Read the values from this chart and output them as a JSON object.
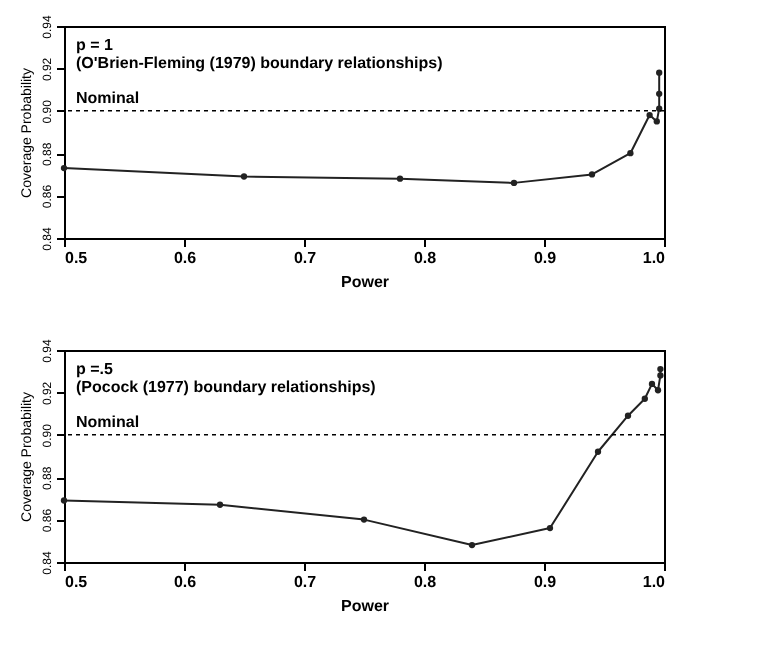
{
  "chart_data": [
    {
      "type": "line",
      "xlabel": "Power",
      "ylabel": "Coverage Probability",
      "annotations": [
        "p = 1",
        "(O'Brien-Fleming (1979) boundary relationships)"
      ],
      "x": [
        0.5,
        0.65,
        0.78,
        0.875,
        0.94,
        0.972,
        0.988,
        0.994,
        0.996,
        0.996,
        0.996
      ],
      "values": [
        0.873,
        0.869,
        0.868,
        0.866,
        0.87,
        0.88,
        0.898,
        0.895,
        0.901,
        0.908,
        0.918
      ],
      "color": "#222222",
      "marker": "circle",
      "grid": false,
      "xlim": [
        0.5,
        1.0
      ],
      "xticks": [
        0.5,
        0.6,
        0.7,
        0.8,
        0.9,
        {
          "value": 1.0,
          "label": "1.0"
        }
      ],
      "ylim": [
        0.84,
        0.94
      ],
      "yticks": [
        0.84,
        0.86,
        0.88,
        {
          "value": 0.9,
          "label": "0.90"
        },
        0.92,
        0.94
      ],
      "ref_lines": [
        {
          "axis": "y",
          "value": 0.9,
          "label": "Nominal",
          "line_style": "dotted"
        }
      ]
    },
    {
      "type": "line",
      "xlabel": "Power",
      "ylabel": "Coverage Probability",
      "annotations": [
        "p =.5",
        "(Pocock (1977) boundary relationships)"
      ],
      "x": [
        0.5,
        0.63,
        0.75,
        0.84,
        0.905,
        0.945,
        0.97,
        0.984,
        0.99,
        0.995,
        0.997,
        0.997
      ],
      "values": [
        0.869,
        0.867,
        0.86,
        0.848,
        0.856,
        0.892,
        0.909,
        0.917,
        0.924,
        0.921,
        0.928,
        0.931
      ],
      "color": "#222222",
      "marker": "circle",
      "grid": false,
      "xlim": [
        0.5,
        1.0
      ],
      "xticks": [
        0.5,
        0.6,
        0.7,
        0.8,
        0.9,
        {
          "value": 1.0,
          "label": "1.0"
        }
      ],
      "ylim": [
        0.84,
        0.94
      ],
      "yticks": [
        0.84,
        0.86,
        0.88,
        {
          "value": 0.9,
          "label": "0.90"
        },
        0.92,
        0.94
      ],
      "ref_lines": [
        {
          "axis": "y",
          "value": 0.9,
          "label": "Nominal",
          "line_style": "dotted"
        }
      ]
    }
  ]
}
